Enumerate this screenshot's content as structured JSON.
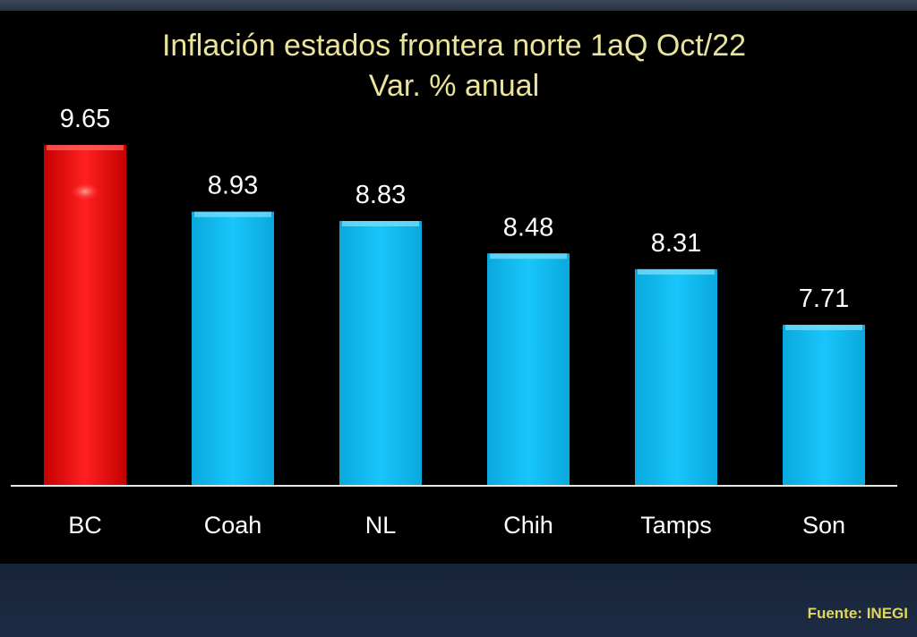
{
  "chart_data": {
    "type": "bar",
    "title": "Inflación estados frontera norte 1aQ Oct/22",
    "subtitle": "Var. % anual",
    "categories": [
      "BC",
      "Coah",
      "NL",
      "Chih",
      "Tamps",
      "Son"
    ],
    "values": [
      9.65,
      8.93,
      8.83,
      8.48,
      8.31,
      7.71
    ],
    "value_labels": [
      "9.65",
      "8.93",
      "8.83",
      "8.48",
      "8.31",
      "7.71"
    ],
    "bar_colors": [
      "#ff1a1a",
      "#12bff5",
      "#12bff5",
      "#12bff5",
      "#12bff5",
      "#12bff5"
    ],
    "highlight_color": "#ff1a1a",
    "bar_color": "#12bff5",
    "title_color": "#e9e49a",
    "label_color": "#ffffff",
    "background": "#000000",
    "xlabel": "",
    "ylabel": "",
    "ylim": [
      0,
      10
    ],
    "grid": false,
    "legend": "none"
  },
  "footer": {
    "source_prefix": "Fuente:",
    "source_name": "INEGI",
    "color": "#e0d85a"
  }
}
